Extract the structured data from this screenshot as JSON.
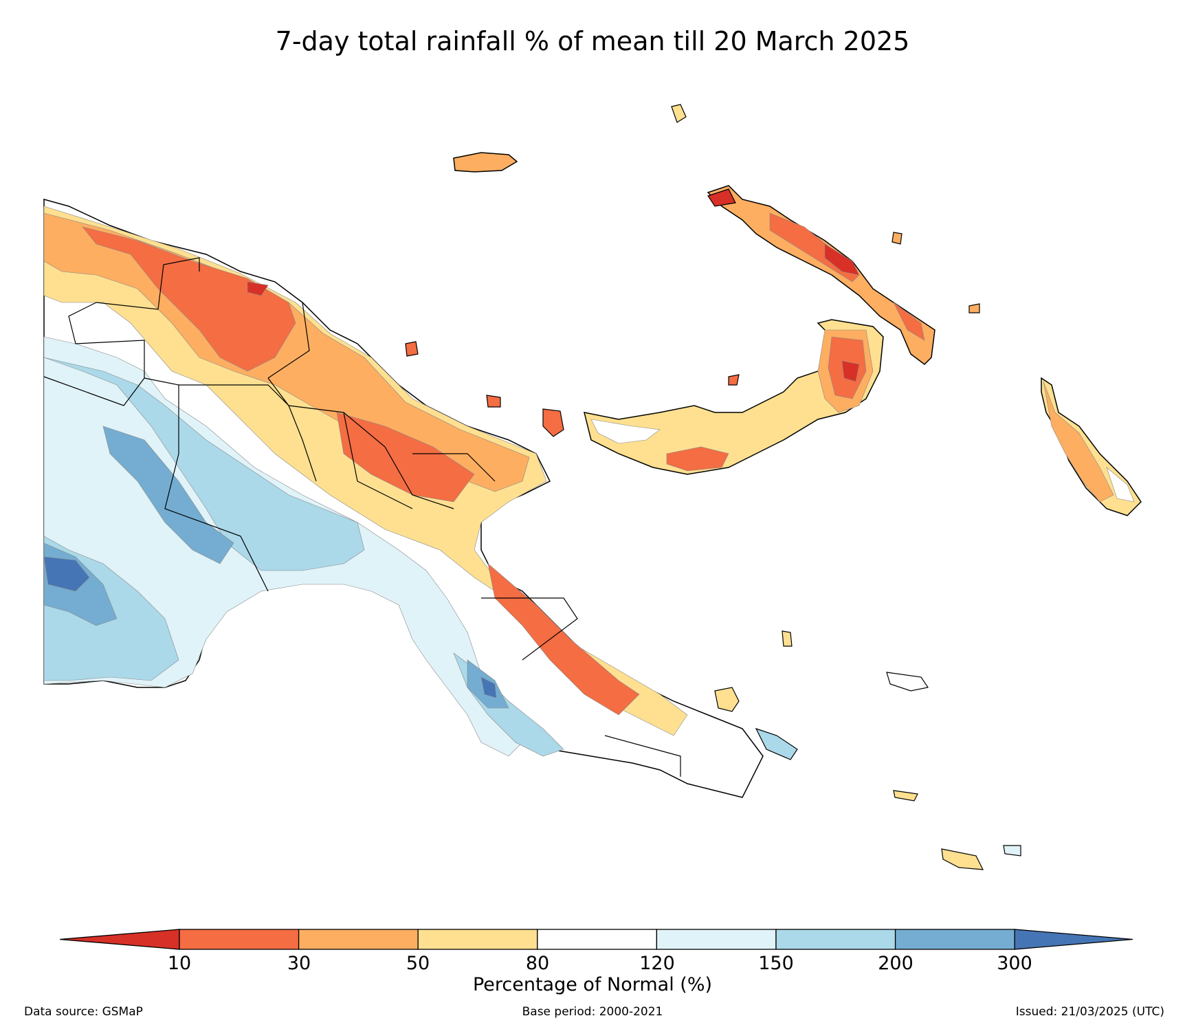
{
  "title": "7-day total rainfall % of mean till 20 March 2025",
  "colorbar": {
    "label": "Percentage of Normal (%)",
    "ticks": [
      "10",
      "30",
      "50",
      "80",
      "120",
      "150",
      "200",
      "300"
    ],
    "colors": {
      "lt10": "#d73027",
      "10-30": "#f46d43",
      "30-50": "#fdae61",
      "50-80": "#fee090",
      "80-120": "#ffffff",
      "120-150": "#e0f3f8",
      "150-200": "#abd9e9",
      "200-300": "#74add1",
      "gt300": "#4575b4"
    }
  },
  "footer": {
    "source": "Data source: GSMaP",
    "base_period": "Base period: 2000-2021",
    "issued": "Issued: 21/03/2025 (UTC)"
  }
}
